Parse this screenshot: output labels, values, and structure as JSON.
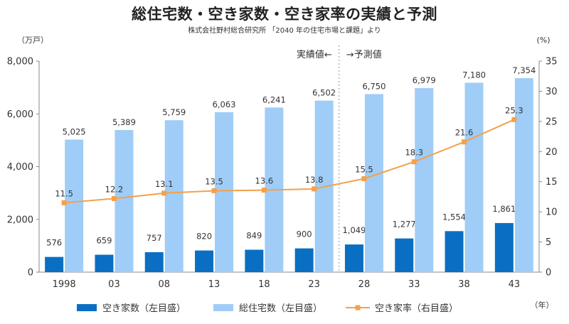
{
  "title": "総住宅数・空き家数・空き家率の実績と予測",
  "subtitle": "株式会社野村総合研究所 「2040 年の住宅市場と課題」より",
  "colors": {
    "vacant": "#0a6fc2",
    "total": "#9fcdf7",
    "rate": "#f4a14a"
  },
  "chart_data": {
    "type": "bar",
    "categories": [
      "1998",
      "03",
      "08",
      "13",
      "18",
      "23",
      "28",
      "33",
      "38",
      "43"
    ],
    "series": [
      {
        "name": "空き家数（左目盛）",
        "axis": "left",
        "type": "bar",
        "values": [
          576,
          659,
          757,
          820,
          849,
          900,
          1049,
          1277,
          1554,
          1861
        ],
        "labels": [
          "576",
          "659",
          "757",
          "820",
          "849",
          "900",
          "1,049",
          "1,277",
          "1,554",
          "1,861"
        ]
      },
      {
        "name": "総住宅数（左目盛）",
        "axis": "left",
        "type": "bar",
        "values": [
          5025,
          5389,
          5759,
          6063,
          6241,
          6502,
          6750,
          6979,
          7180,
          7354
        ],
        "labels": [
          "5,025",
          "5,389",
          "5,759",
          "6,063",
          "6,241",
          "6,502",
          "6,750",
          "6,979",
          "7,180",
          "7,354"
        ]
      },
      {
        "name": "空き家率（右目盛）",
        "axis": "right",
        "type": "line",
        "values": [
          11.5,
          12.2,
          13.1,
          13.5,
          13.6,
          13.8,
          15.5,
          18.3,
          21.6,
          25.3
        ],
        "labels": [
          "11.5",
          "12.2",
          "13.1",
          "13.5",
          "13.6",
          "13.8",
          "15.5",
          "18.3",
          "21.6",
          "25.3"
        ]
      }
    ],
    "yleft": {
      "unit": "（万戸）",
      "lim": [
        0,
        8000
      ],
      "ticks": [
        0,
        2000,
        4000,
        6000,
        8000
      ],
      "tick_labels": [
        "0",
        "2,000",
        "4,000",
        "6,000",
        "8,000"
      ]
    },
    "yright": {
      "unit": "(%)",
      "lim": [
        0,
        35
      ],
      "ticks": [
        0,
        5,
        10,
        15,
        20,
        25,
        30,
        35
      ],
      "tick_labels": [
        "0",
        "5",
        "10",
        "15",
        "20",
        "25",
        "30",
        "35"
      ]
    },
    "xunit": "（年）",
    "actual_label": "実績値←",
    "forecast_label": "→予測値",
    "forecast_starts_after": "23",
    "legend_position": "bottom"
  }
}
